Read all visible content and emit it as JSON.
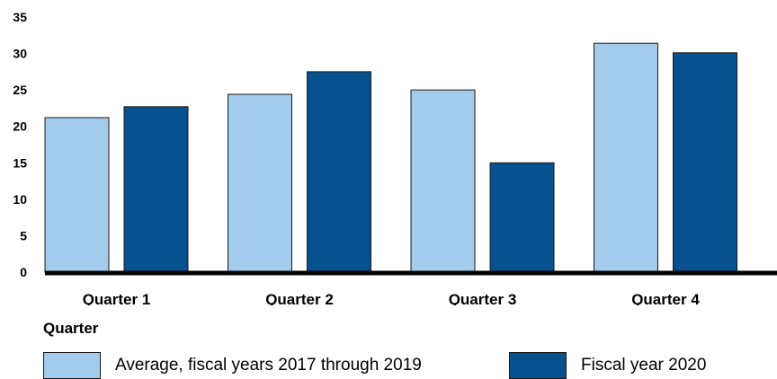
{
  "chart_data": {
    "type": "bar",
    "categories": [
      "Quarter 1",
      "Quarter 2",
      "Quarter 3",
      "Quarter 4"
    ],
    "series": [
      {
        "name": "Average, fiscal years 2017 through 2019",
        "values": [
          21.2,
          24.4,
          25.0,
          31.4
        ],
        "color": "#a3cbeb"
      },
      {
        "name": "Fiscal year 2020",
        "values": [
          22.7,
          27.5,
          15.0,
          30.1
        ],
        "color": "#07518f"
      }
    ],
    "title": "",
    "xlabel": "Quarter",
    "ylabel": "",
    "ylim": [
      0,
      35
    ],
    "yticks": [
      "0",
      "5",
      "10",
      "15",
      "20",
      "25",
      "30",
      "35"
    ],
    "grid": false,
    "legend_position": "bottom"
  }
}
